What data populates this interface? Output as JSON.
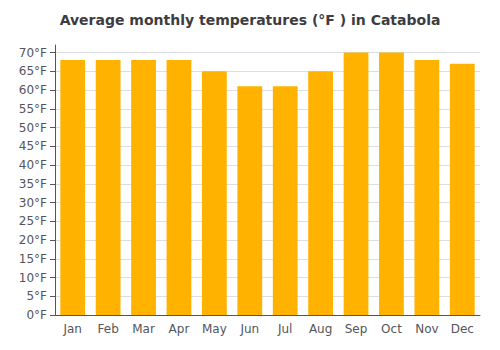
{
  "chart_data": {
    "type": "bar",
    "title": "Average monthly temperatures (°F ) in Catabola",
    "categories": [
      "Jan",
      "Feb",
      "Mar",
      "Apr",
      "May",
      "Jun",
      "Jul",
      "Aug",
      "Sep",
      "Oct",
      "Nov",
      "Dec"
    ],
    "values": [
      68,
      68,
      68,
      68,
      65,
      61,
      61,
      65,
      70,
      70,
      68,
      67
    ],
    "color": "#FFB300",
    "ylim": [
      0,
      72
    ],
    "yticks": [
      {
        "value": 0,
        "label": "0°F"
      },
      {
        "value": 5,
        "label": "5°F"
      },
      {
        "value": 10,
        "label": "10°F"
      },
      {
        "value": 15,
        "label": "15°F"
      },
      {
        "value": 20,
        "label": "20°F"
      },
      {
        "value": 25,
        "label": "25°F"
      },
      {
        "value": 30,
        "label": "30°F"
      },
      {
        "value": 35,
        "label": "35°F"
      },
      {
        "value": 40,
        "label": "40°F"
      },
      {
        "value": 45,
        "label": "45°F"
      },
      {
        "value": 50,
        "label": "50°F"
      },
      {
        "value": 55,
        "label": "55°F"
      },
      {
        "value": 60,
        "label": "60°F"
      },
      {
        "value": 65,
        "label": "65°F"
      },
      {
        "value": 70,
        "label": "70°F"
      }
    ],
    "grid": true
  }
}
